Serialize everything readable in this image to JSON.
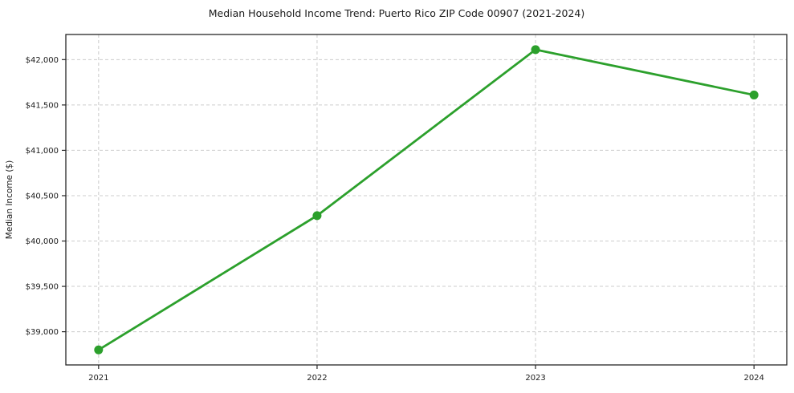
{
  "chart_data": {
    "type": "line",
    "title": "Median Household Income Trend: Puerto Rico ZIP Code 00907 (2021-2024)",
    "xlabel": "",
    "ylabel": "Median Income ($)",
    "categories": [
      "2021",
      "2022",
      "2023",
      "2024"
    ],
    "series": [
      {
        "name": "Median Household Income",
        "values": [
          38800,
          40280,
          42110,
          41610
        ]
      }
    ],
    "ytick_values": [
      39000,
      39500,
      40000,
      40500,
      41000,
      41500,
      42000
    ],
    "ytick_labels": [
      "$39,000",
      "$39,500",
      "$40,000",
      "$40,500",
      "$41,000",
      "$41,500",
      "$42,000"
    ],
    "ylim": [
      38634,
      42277
    ],
    "grid": true,
    "legend": "none",
    "style": {
      "line_color": "#2ca02c",
      "marker": "circle",
      "marker_radius": 5.5,
      "line_width": 2.8,
      "grid_color": "#cccccc",
      "grid_dash": "4 3",
      "axis_color": "#262626",
      "text_color": "#1a1a1a",
      "background": "#ffffff"
    }
  }
}
